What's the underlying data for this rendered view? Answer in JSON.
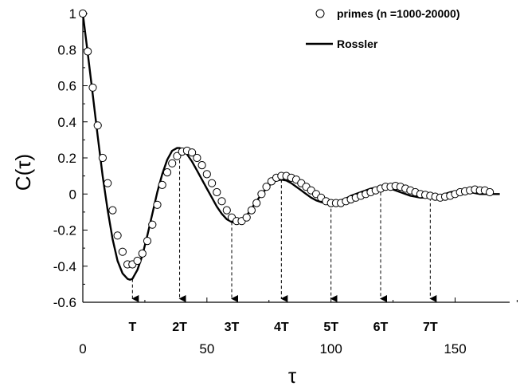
{
  "chart_data": {
    "type": "line",
    "title": "",
    "xlabel": "τ",
    "ylabel": "C(τ)",
    "xlim": [
      0,
      180
    ],
    "ylim": [
      -0.6,
      1.0
    ],
    "xticks": [
      "0",
      "50",
      "100",
      "150"
    ],
    "xtick_values": [
      0,
      50,
      100,
      150
    ],
    "yticks": [
      "1",
      "0.8",
      "0.6",
      "0.4",
      "0.2",
      "0",
      "-0.2",
      "-0.4",
      "-0.6"
    ],
    "ytick_values": [
      1,
      0.8,
      0.6,
      0.4,
      0.2,
      0,
      -0.2,
      -0.4,
      -0.6
    ],
    "grid": false,
    "legend_position": "top-right",
    "colors": {
      "line": "#000000",
      "marker_fill": "#ffffff",
      "marker_stroke": "#000000"
    },
    "series": [
      {
        "name": "primes (n =1000-20000)",
        "marker": "circle-open",
        "x": [
          0,
          2,
          4,
          6,
          8,
          10,
          12,
          14,
          16,
          18,
          20,
          22,
          24,
          26,
          28,
          30,
          32,
          34,
          36,
          38,
          40,
          42,
          44,
          46,
          48,
          50,
          52,
          54,
          56,
          58,
          60,
          62,
          64,
          66,
          68,
          70,
          72,
          74,
          76,
          78,
          80,
          82,
          84,
          86,
          88,
          90,
          92,
          94,
          96,
          98,
          100,
          102,
          104,
          106,
          108,
          110,
          112,
          114,
          116,
          118,
          120,
          122,
          124,
          126,
          128,
          130,
          132,
          134,
          136,
          138,
          140,
          142,
          144,
          146,
          148,
          150,
          152,
          154,
          156,
          158,
          160,
          162,
          164
        ],
        "y": [
          1.0,
          0.79,
          0.59,
          0.38,
          0.2,
          0.06,
          -0.09,
          -0.23,
          -0.32,
          -0.39,
          -0.39,
          -0.37,
          -0.33,
          -0.26,
          -0.17,
          -0.06,
          0.05,
          0.12,
          0.17,
          0.21,
          0.235,
          0.24,
          0.23,
          0.2,
          0.16,
          0.11,
          0.06,
          0.01,
          -0.04,
          -0.09,
          -0.13,
          -0.15,
          -0.15,
          -0.13,
          -0.09,
          -0.05,
          0.0,
          0.04,
          0.07,
          0.09,
          0.1,
          0.1,
          0.09,
          0.08,
          0.06,
          0.04,
          0.02,
          0.0,
          -0.02,
          -0.04,
          -0.05,
          -0.05,
          -0.05,
          -0.04,
          -0.03,
          -0.02,
          -0.01,
          0.0,
          0.01,
          0.02,
          0.03,
          0.04,
          0.04,
          0.045,
          0.04,
          0.03,
          0.02,
          0.01,
          0.0,
          -0.005,
          -0.01,
          -0.015,
          -0.02,
          -0.015,
          -0.01,
          0.0,
          0.01,
          0.015,
          0.02,
          0.025,
          0.02,
          0.02,
          0.01
        ]
      },
      {
        "name": "Rossler",
        "marker": "none",
        "x": [
          0,
          2,
          4,
          6,
          8,
          10,
          12,
          14,
          16,
          18,
          19,
          20,
          22,
          24,
          26,
          28,
          30,
          32,
          34,
          36,
          38,
          39,
          40,
          42,
          44,
          46,
          48,
          50,
          52,
          54,
          56,
          58,
          60,
          62,
          64,
          66,
          68,
          70,
          72,
          74,
          76,
          78,
          80,
          82,
          84,
          86,
          88,
          90,
          92,
          94,
          96,
          98,
          100,
          102,
          104,
          106,
          108,
          110,
          112,
          114,
          116,
          118,
          120,
          122,
          124,
          126,
          128,
          130,
          132,
          134,
          136,
          138,
          140,
          142,
          144,
          146,
          148,
          150,
          152,
          154,
          156,
          158,
          160,
          162,
          164,
          168
        ],
        "y": [
          1.0,
          0.78,
          0.55,
          0.32,
          0.1,
          -0.09,
          -0.25,
          -0.37,
          -0.44,
          -0.47,
          -0.475,
          -0.47,
          -0.42,
          -0.34,
          -0.23,
          -0.11,
          0.01,
          0.11,
          0.19,
          0.24,
          0.255,
          0.255,
          0.25,
          0.22,
          0.18,
          0.13,
          0.08,
          0.03,
          -0.02,
          -0.07,
          -0.11,
          -0.14,
          -0.155,
          -0.16,
          -0.15,
          -0.12,
          -0.08,
          -0.04,
          0.0,
          0.03,
          0.06,
          0.075,
          0.08,
          0.075,
          0.06,
          0.04,
          0.02,
          0.0,
          -0.02,
          -0.035,
          -0.045,
          -0.05,
          -0.05,
          -0.045,
          -0.035,
          -0.025,
          -0.01,
          0.0,
          0.01,
          0.02,
          0.03,
          0.035,
          0.04,
          0.035,
          0.03,
          0.02,
          0.01,
          0.0,
          -0.01,
          -0.015,
          -0.02,
          -0.02,
          -0.02,
          -0.015,
          -0.01,
          0.0,
          0.01,
          0.015,
          0.015,
          0.01,
          0.01,
          0.005,
          0.0,
          0.0,
          0.0,
          0.0
        ]
      }
    ],
    "annotations": [
      {
        "label": "T",
        "x": 20,
        "y_start": -0.47,
        "y_end": -0.58
      },
      {
        "label": "2T",
        "x": 39,
        "y_start": 0.25,
        "y_end": -0.58
      },
      {
        "label": "3T",
        "x": 60,
        "y_start": -0.155,
        "y_end": -0.58
      },
      {
        "label": "4T",
        "x": 80,
        "y_start": 0.08,
        "y_end": -0.58
      },
      {
        "label": "5T",
        "x": 100,
        "y_start": -0.05,
        "y_end": -0.58
      },
      {
        "label": "6T",
        "x": 120,
        "y_start": 0.04,
        "y_end": -0.58
      },
      {
        "label": "7T",
        "x": 140,
        "y_start": -0.02,
        "y_end": -0.58
      }
    ]
  }
}
